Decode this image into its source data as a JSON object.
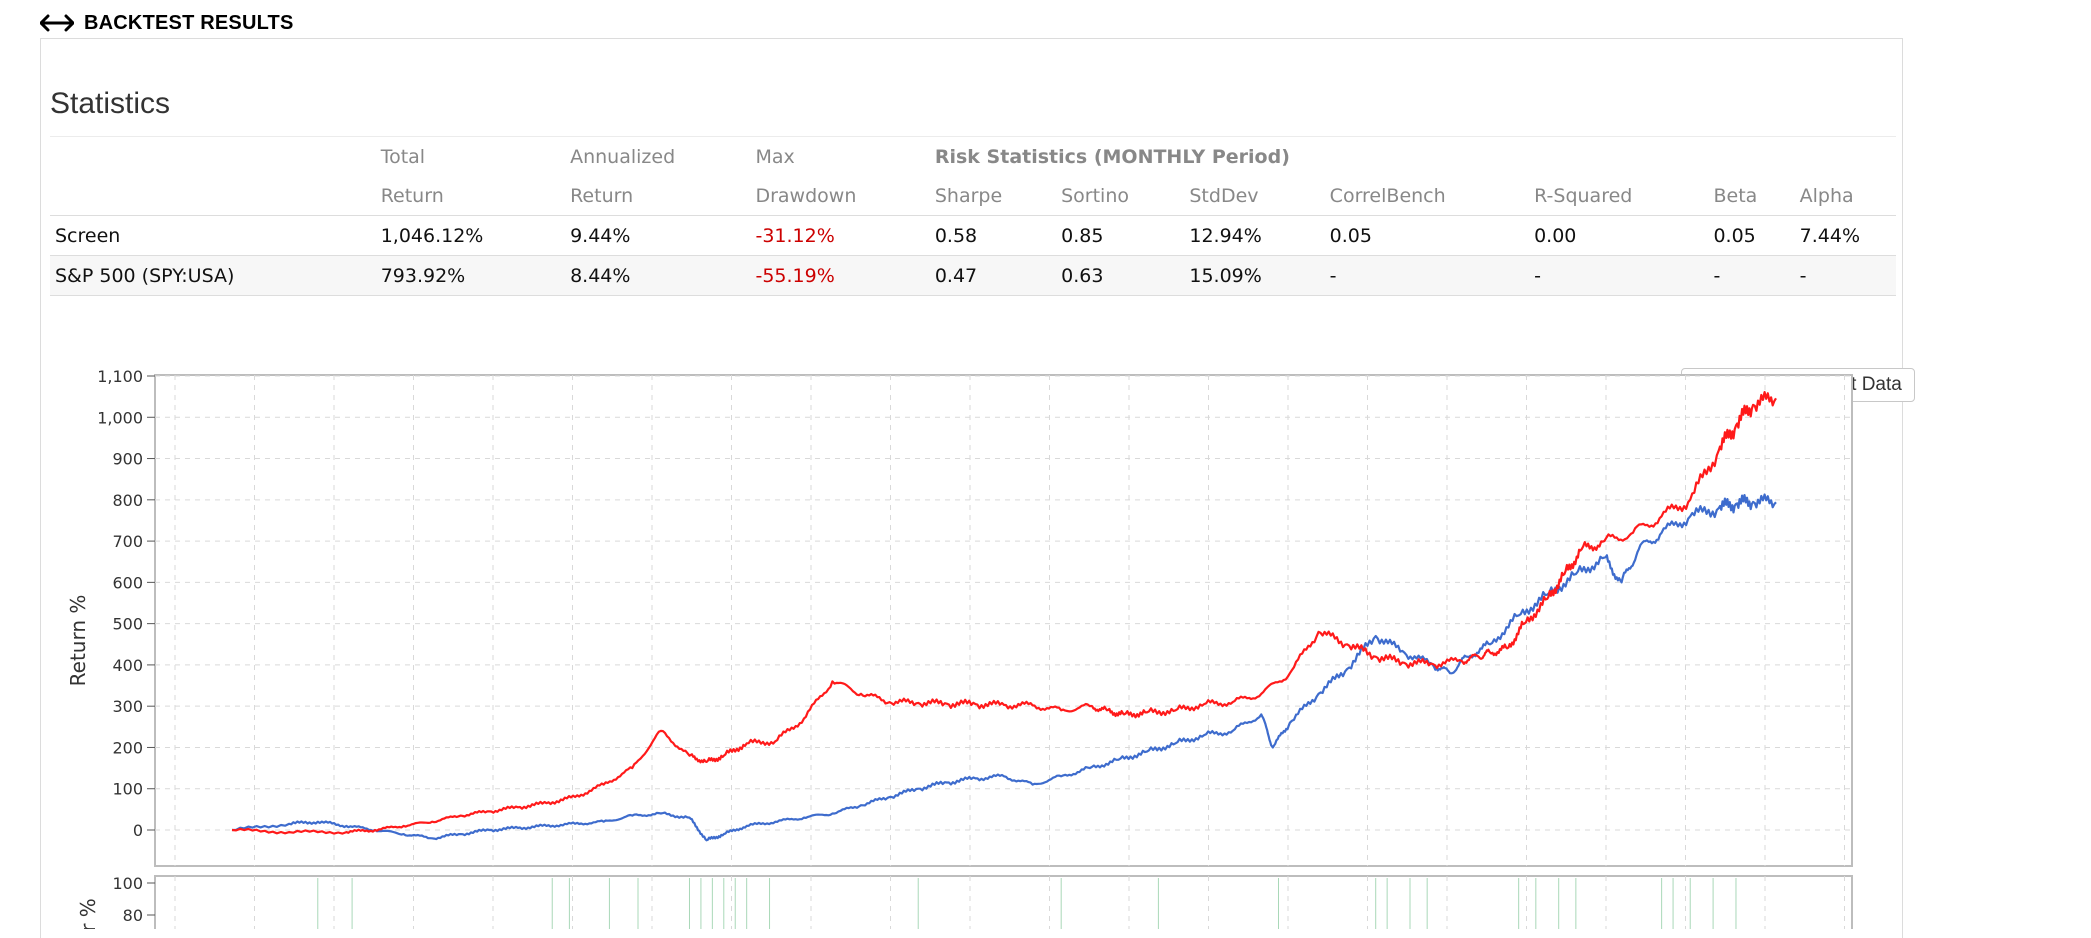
{
  "header": {
    "title": "BACKTEST RESULTS",
    "icon": "expand-horizontal-icon"
  },
  "statistics": {
    "title": "Statistics",
    "header_top": [
      "",
      "Total",
      "Annualized",
      "Max",
      "Risk Statistics (MONTHLY Period)",
      "",
      "",
      "",
      "",
      "",
      ""
    ],
    "header_bottom": [
      "",
      "Return",
      "Return",
      "Drawdown",
      "Sharpe",
      "Sortino",
      "StdDev",
      "CorrelBench",
      "R-Squared",
      "Beta",
      "Alpha"
    ],
    "rows": [
      {
        "name": "Screen",
        "total_return": "1,046.12%",
        "annualized_return": "9.44%",
        "max_drawdown": "-31.12%",
        "sharpe": "0.58",
        "sortino": "0.85",
        "stddev": "12.94%",
        "correlbench": "0.05",
        "r_squared": "0.00",
        "beta": "0.05",
        "alpha": "7.44%"
      },
      {
        "name": "S&P 500 (SPY:USA)",
        "total_return": "793.92%",
        "annualized_return": "8.44%",
        "max_drawdown": "-55.19%",
        "sharpe": "0.47",
        "sortino": "0.63",
        "stddev": "15.09%",
        "correlbench": "-",
        "r_squared": "-",
        "beta": "-",
        "alpha": "-"
      }
    ],
    "negative_color": "#cc0000"
  },
  "download_button": {
    "label": "Download Chart Data",
    "icon": "download-icon"
  },
  "chart_data": [
    {
      "type": "line",
      "ylabel": "Return %",
      "xlabel": "",
      "ylim": [
        -90,
        1100
      ],
      "yticks": [
        0,
        100,
        200,
        300,
        400,
        500,
        600,
        700,
        800,
        900,
        1000,
        1100
      ],
      "ytick_labels": [
        "0",
        "100",
        "200",
        "300",
        "400",
        "500",
        "600",
        "700",
        "800",
        "900",
        "1,000",
        "1,100"
      ],
      "grid": true,
      "legend": "none",
      "series": [
        {
          "color": "#ff1a1a",
          "x": [
            0,
            1,
            2,
            2.5,
            3,
            3.5,
            4,
            4.5,
            5,
            5.5,
            6,
            6.5,
            7,
            7.5,
            8,
            8.3,
            8.6,
            9,
            9.5,
            10,
            10.5,
            11,
            11.5,
            12,
            12.5,
            13,
            13.5,
            14,
            14.5,
            15,
            15.3,
            15.6,
            16,
            16.5,
            17,
            17.5,
            18,
            18.5,
            19,
            19.5,
            20,
            20.5,
            21,
            21.5,
            21.8,
            22,
            22.3,
            22.6,
            23,
            23.3,
            23.6,
            24,
            24.5,
            25,
            25.5,
            26,
            26.3,
            26.6,
            27
          ],
          "y": [
            0,
            -5,
            -5,
            0,
            10,
            20,
            35,
            45,
            55,
            65,
            80,
            110,
            150,
            240,
            180,
            165,
            180,
            210,
            215,
            270,
            360,
            330,
            310,
            308,
            306,
            305,
            303,
            302,
            290,
            300,
            290,
            280,
            285,
            290,
            305,
            310,
            330,
            380,
            480,
            450,
            420,
            405,
            402,
            410,
            420,
            430,
            440,
            500,
            560,
            620,
            680,
            700,
            720,
            760,
            800,
            920,
            980,
            1030,
            1046
          ]
        },
        {
          "color": "#3e6ccd",
          "x": [
            0,
            1,
            1.5,
            2,
            2.5,
            3,
            3.5,
            4,
            4.5,
            5,
            5.5,
            6,
            6.5,
            7,
            7.5,
            8,
            8.3,
            8.6,
            9,
            9.5,
            10,
            10.5,
            11,
            11.5,
            12,
            12.5,
            13,
            13.5,
            14,
            14.5,
            15,
            15.5,
            16,
            16.5,
            17,
            17.5,
            18,
            18.2,
            18.5,
            19,
            19.5,
            20,
            20.5,
            21,
            21.3,
            21.6,
            22,
            22.5,
            23,
            23.5,
            24,
            24.3,
            24.6,
            25,
            25.5,
            26,
            26.3,
            26.6,
            27
          ],
          "y": [
            0,
            15,
            20,
            10,
            0,
            -10,
            -20,
            -10,
            0,
            5,
            10,
            15,
            20,
            35,
            40,
            30,
            -25,
            -10,
            10,
            20,
            30,
            40,
            60,
            80,
            100,
            115,
            125,
            130,
            110,
            130,
            150,
            170,
            190,
            210,
            230,
            240,
            280,
            200,
            260,
            330,
            390,
            470,
            430,
            400,
            380,
            420,
            450,
            520,
            570,
            620,
            660,
            600,
            680,
            720,
            760,
            780,
            790,
            795,
            794
          ]
        }
      ]
    },
    {
      "type": "bar",
      "ylabel": "r %",
      "yticks": [
        80,
        100
      ],
      "ytick_labels": [
        "80",
        "100"
      ],
      "grid": true,
      "x": [
        1.5,
        2.1,
        5.6,
        5.9,
        6.6,
        7.1,
        8.0,
        8.2,
        8.4,
        8.6,
        8.8,
        9.0,
        9.4,
        12.0,
        14.5,
        16.2,
        18.3,
        20.0,
        20.2,
        20.6,
        20.9,
        22.5,
        22.8,
        23.2,
        23.5,
        25.0,
        25.2,
        25.5,
        25.9,
        26.3
      ],
      "values": [
        100,
        100,
        100,
        100,
        100,
        100,
        100,
        100,
        100,
        100,
        100,
        100,
        100,
        100,
        100,
        100,
        100,
        100,
        100,
        100,
        100,
        100,
        100,
        100,
        100,
        100,
        100,
        100,
        100,
        100
      ]
    }
  ]
}
